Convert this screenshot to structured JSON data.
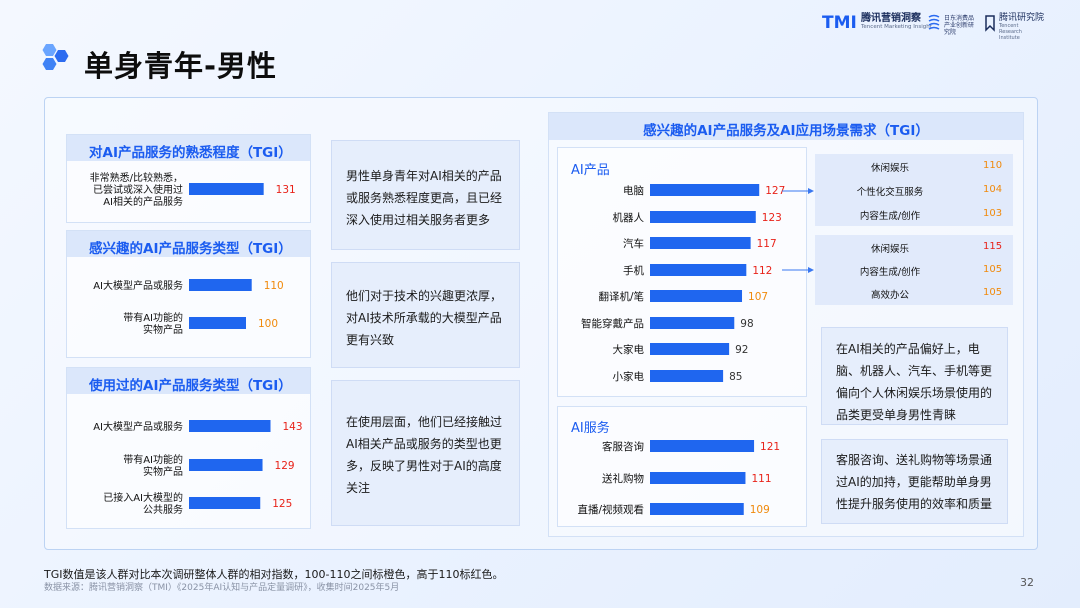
{
  "page": {
    "title": "单身青年-男性",
    "page_number": "32",
    "footnote": "TGI数值是该人群对比本次调研整体人群的相对指数，100-110之间标橙色，高于110标红色。",
    "source": "数据来源：腾讯营销洞察（TMI）《2025年AI认知与产品定量调研》，收集时间2025年5月"
  },
  "brands": {
    "tmi_mark": "TMI",
    "tmi_cn": "腾讯营销洞察",
    "tmi_en": "Tencent Marketing Insight",
    "partner_cn": "日东消费品产业创新研究院",
    "research_cn": "腾讯研究院",
    "research_en": "Tencent Research Institute"
  },
  "colors": {
    "bar": "#1f66ef",
    "red": "#e8231a",
    "orange": "#f08a0c",
    "title_blue": "#1b5cf0"
  },
  "notes": [
    "男性单身青年对AI相关的产品或服务熟悉程度更高，且已经深入使用过相关服务者更多",
    "他们对于技术的兴趣更浓厚，对AI技术所承载的大模型产品更有兴致",
    "在使用层面，他们已经接触过AI相关产品或服务的类型也更多，反映了男性对于AI的高度关注",
    "在AI相关的产品偏好上，电脑、机器人、汽车、手机等更偏向个人休闲娱乐场景使用的品类更受单身男性青睐",
    "客服咨询、送礼购物等场景通过AI的加持，更能帮助单身男性提升服务使用的效率和质量"
  ],
  "chart_data": [
    {
      "type": "bar",
      "title": "对AI产品服务的熟悉程度（TGI）",
      "categories": [
        "非常熟悉/比较熟悉，已尝试或深入使用过AI相关的产品服务"
      ],
      "category_lines": [
        [
          "非常熟悉/比较熟悉，",
          "已尝试或深入使用过",
          "AI相关的产品服务"
        ]
      ],
      "values": [
        131
      ],
      "value_labels": [
        "131"
      ]
    },
    {
      "type": "bar",
      "title": "感兴趣的AI产品服务类型（TGI）",
      "categories": [
        "AI大模型产品或服务",
        "带有AI功能的实物产品"
      ],
      "category_lines": [
        [
          "AI大模型产品或服务"
        ],
        [
          "带有AI功能的",
          "实物产品"
        ]
      ],
      "values": [
        110,
        100
      ],
      "value_labels": [
        "110",
        "100"
      ]
    },
    {
      "type": "bar",
      "title": "使用过的AI产品服务类型（TGI）",
      "categories": [
        "AI大模型产品或服务",
        "带有AI功能的实物产品",
        "已接入AI大模型的公共服务"
      ],
      "category_lines": [
        [
          "AI大模型产品或服务"
        ],
        [
          "带有AI功能的",
          "实物产品"
        ],
        [
          "已接入AI大模型的",
          "公共服务"
        ]
      ],
      "values": [
        143,
        129,
        125
      ],
      "value_labels": [
        "143",
        "129",
        "125"
      ]
    },
    {
      "type": "bar",
      "title": "感兴趣的AI产品服务及AI应用场景需求（TGI）",
      "group": "AI产品",
      "categories": [
        "电脑",
        "机器人",
        "汽车",
        "手机",
        "翻译机/笔",
        "智能穿戴产品",
        "大家电",
        "小家电"
      ],
      "values": [
        127,
        123,
        117,
        112,
        107,
        98,
        92,
        85
      ],
      "value_labels": [
        "127",
        "123",
        "117",
        "112",
        "107",
        "98",
        "92",
        "85"
      ]
    },
    {
      "type": "bar",
      "group": "AI服务",
      "categories": [
        "客服咨询",
        "送礼购物",
        "直播/视频观看"
      ],
      "values": [
        121,
        111,
        109
      ],
      "value_labels": [
        "121",
        "111",
        "109"
      ]
    },
    {
      "type": "table",
      "links_from": "电脑",
      "rows": [
        {
          "name": "休闲娱乐",
          "value": 110,
          "label": "110"
        },
        {
          "name": "个性化交互服务",
          "value": 104,
          "label": "104"
        },
        {
          "name": "内容生成/创作",
          "value": 103,
          "label": "103"
        }
      ]
    },
    {
      "type": "table",
      "links_from": "手机",
      "rows": [
        {
          "name": "休闲娱乐",
          "value": 115,
          "label": "115"
        },
        {
          "name": "内容生成/创作",
          "value": 105,
          "label": "105"
        },
        {
          "name": "高效办公",
          "value": 105,
          "label": "105"
        }
      ]
    }
  ]
}
